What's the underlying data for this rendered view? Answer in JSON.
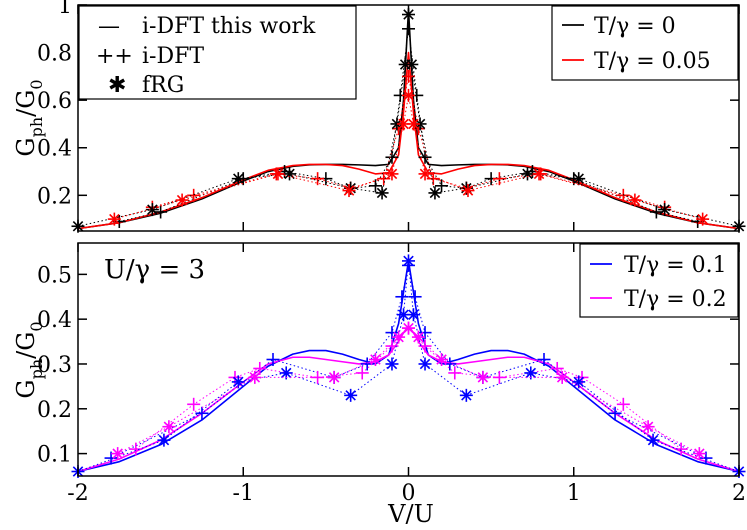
{
  "chart_data": [
    {
      "type": "line",
      "panel": "top",
      "xlim": [
        -2,
        2
      ],
      "ylim": [
        0.05,
        1.0
      ],
      "yticks": [
        0.2,
        0.4,
        0.6,
        0.8,
        1
      ],
      "ytick_labels": [
        "0.2",
        "0.4",
        "0.6",
        "0.8",
        "1"
      ],
      "ylabel": "Gph/G0",
      "ylabel_main": "G",
      "ylabel_sub": "ph",
      "ylabel_den": "G",
      "ylabel_den_sub": "0",
      "legend_left": {
        "placement": "top-left",
        "entries": [
          {
            "symbol": "—",
            "label": "i-DFT this work"
          },
          {
            "symbol": "++",
            "label": "i-DFT"
          },
          {
            "symbol": "✱",
            "label": "fRG"
          }
        ]
      },
      "legend_right": {
        "placement": "top-right",
        "entries": [
          {
            "label": "T/γ = 0",
            "color": "#000000"
          },
          {
            "label": "T/γ = 0.05",
            "color": "#ff0000"
          }
        ]
      },
      "series": [
        {
          "name": "T/γ = 0",
          "color": "#000000",
          "peak": 0.98,
          "x": [
            -2,
            -1.75,
            -1.5,
            -1.25,
            -1.0,
            -0.85,
            -0.7,
            -0.6,
            -0.5,
            -0.4,
            -0.3,
            -0.2,
            -0.12,
            -0.06,
            -0.03,
            0,
            0.03,
            0.06,
            0.12,
            0.2,
            0.3,
            0.4,
            0.5,
            0.6,
            0.7,
            0.85,
            1.0,
            1.25,
            1.5,
            1.75,
            2
          ],
          "y": [
            0.06,
            0.085,
            0.125,
            0.185,
            0.26,
            0.3,
            0.322,
            0.328,
            0.33,
            0.33,
            0.328,
            0.325,
            0.33,
            0.4,
            0.6,
            0.98,
            0.6,
            0.4,
            0.33,
            0.325,
            0.328,
            0.33,
            0.33,
            0.328,
            0.322,
            0.3,
            0.26,
            0.185,
            0.125,
            0.085,
            0.06
          ]
        },
        {
          "name": "T/γ = 0.05",
          "color": "#ff0000",
          "peak": 0.8,
          "x": [
            -2,
            -1.75,
            -1.5,
            -1.25,
            -1.0,
            -0.85,
            -0.7,
            -0.6,
            -0.5,
            -0.4,
            -0.3,
            -0.2,
            -0.12,
            -0.06,
            -0.03,
            0,
            0.03,
            0.06,
            0.12,
            0.2,
            0.3,
            0.4,
            0.5,
            0.6,
            0.7,
            0.85,
            1.0,
            1.25,
            1.5,
            1.75,
            2
          ],
          "y": [
            0.06,
            0.085,
            0.13,
            0.19,
            0.265,
            0.305,
            0.325,
            0.33,
            0.33,
            0.325,
            0.31,
            0.29,
            0.295,
            0.37,
            0.55,
            0.8,
            0.55,
            0.37,
            0.295,
            0.29,
            0.31,
            0.325,
            0.33,
            0.33,
            0.325,
            0.305,
            0.265,
            0.19,
            0.13,
            0.085,
            0.06
          ]
        },
        {
          "name": "i-DFT (T/γ = 0)",
          "color": "#000000",
          "marker": "plus",
          "x": [
            -1.75,
            -1.5,
            -1.0,
            -0.75,
            -0.5,
            -0.35,
            -0.2,
            -0.1,
            -0.05,
            0,
            0.05,
            0.1,
            0.2,
            0.35,
            0.5,
            0.75,
            1.0,
            1.5,
            1.75
          ],
          "y": [
            0.09,
            0.13,
            0.27,
            0.3,
            0.27,
            0.23,
            0.24,
            0.36,
            0.62,
            0.9,
            0.62,
            0.36,
            0.24,
            0.23,
            0.27,
            0.3,
            0.27,
            0.13,
            0.09
          ]
        },
        {
          "name": "i-DFT (T/γ = 0.05)",
          "color": "#ff0000",
          "marker": "plus",
          "x": [
            -1.55,
            -1.3,
            -0.8,
            -0.55,
            -0.35,
            -0.15,
            -0.06,
            0,
            0.06,
            0.15,
            0.35,
            0.55,
            0.8,
            1.3,
            1.55
          ],
          "y": [
            0.15,
            0.2,
            0.29,
            0.27,
            0.23,
            0.27,
            0.48,
            0.7,
            0.48,
            0.27,
            0.23,
            0.27,
            0.29,
            0.2,
            0.15
          ]
        },
        {
          "name": "fRG (T/γ = 0)",
          "color": "#000000",
          "marker": "star",
          "x": [
            -2,
            -1.55,
            -1.03,
            -0.72,
            -0.35,
            -0.16,
            -0.07,
            -0.02,
            0,
            0.02,
            0.07,
            0.16,
            0.35,
            0.72,
            1.03,
            1.55,
            2
          ],
          "y": [
            0.07,
            0.14,
            0.27,
            0.29,
            0.23,
            0.21,
            0.5,
            0.75,
            0.96,
            0.75,
            0.5,
            0.21,
            0.23,
            0.29,
            0.27,
            0.14,
            0.07
          ]
        },
        {
          "name": "fRG (T/γ = 0.05)",
          "color": "#ff0000",
          "marker": "star",
          "x": [
            -1.78,
            -1.37,
            -0.79,
            -0.36,
            -0.1,
            -0.03,
            0,
            0.03,
            0.1,
            0.36,
            0.79,
            1.37,
            1.78
          ],
          "y": [
            0.1,
            0.18,
            0.29,
            0.22,
            0.29,
            0.5,
            0.62,
            0.5,
            0.29,
            0.22,
            0.29,
            0.18,
            0.1
          ]
        }
      ]
    },
    {
      "type": "line",
      "panel": "bottom",
      "xlim": [
        -2,
        2
      ],
      "ylim": [
        0.05,
        0.57
      ],
      "xticks": [
        -2,
        -1,
        0,
        1,
        2
      ],
      "xtick_labels": [
        "-2",
        "-1",
        "0",
        "1",
        "2"
      ],
      "yticks": [
        0.1,
        0.2,
        0.3,
        0.4,
        0.5
      ],
      "ytick_labels": [
        "0.1",
        "0.2",
        "0.3",
        "0.4",
        "0.5"
      ],
      "xlabel": "V/U",
      "ylabel": "Gph/G0",
      "ylabel_main": "G",
      "ylabel_sub": "ph",
      "ylabel_den": "G",
      "ylabel_den_sub": "0",
      "annotation": "U/γ = 3",
      "legend_right": {
        "placement": "top-right",
        "entries": [
          {
            "label": "T/γ = 0.1",
            "color": "#0000ff"
          },
          {
            "label": "T/γ = 0.2",
            "color": "#ff00ff"
          }
        ]
      },
      "series": [
        {
          "name": "T/γ = 0.1",
          "color": "#0000ff",
          "x": [
            -2,
            -1.75,
            -1.5,
            -1.25,
            -1.0,
            -0.85,
            -0.7,
            -0.6,
            -0.5,
            -0.4,
            -0.3,
            -0.2,
            -0.12,
            -0.06,
            -0.03,
            0,
            0.03,
            0.06,
            0.12,
            0.2,
            0.3,
            0.4,
            0.5,
            0.6,
            0.7,
            0.85,
            1.0,
            1.25,
            1.5,
            1.75,
            2
          ],
          "y": [
            0.06,
            0.082,
            0.12,
            0.175,
            0.25,
            0.295,
            0.322,
            0.33,
            0.33,
            0.322,
            0.31,
            0.3,
            0.32,
            0.39,
            0.46,
            0.53,
            0.46,
            0.39,
            0.32,
            0.3,
            0.31,
            0.322,
            0.33,
            0.33,
            0.322,
            0.295,
            0.25,
            0.175,
            0.12,
            0.082,
            0.06
          ]
        },
        {
          "name": "T/γ = 0.2",
          "color": "#ff00ff",
          "x": [
            -2,
            -1.75,
            -1.5,
            -1.25,
            -1.0,
            -0.85,
            -0.7,
            -0.6,
            -0.5,
            -0.4,
            -0.3,
            -0.2,
            -0.12,
            -0.06,
            -0.03,
            0,
            0.03,
            0.06,
            0.12,
            0.2,
            0.3,
            0.4,
            0.5,
            0.6,
            0.7,
            0.85,
            1.0,
            1.25,
            1.5,
            1.75,
            2
          ],
          "y": [
            0.06,
            0.088,
            0.13,
            0.19,
            0.26,
            0.3,
            0.315,
            0.315,
            0.31,
            0.305,
            0.3,
            0.305,
            0.32,
            0.35,
            0.37,
            0.385,
            0.37,
            0.35,
            0.32,
            0.305,
            0.3,
            0.305,
            0.31,
            0.315,
            0.315,
            0.3,
            0.26,
            0.19,
            0.13,
            0.088,
            0.06
          ]
        },
        {
          "name": "i-DFT (T/γ = 0.1)",
          "color": "#0000ff",
          "marker": "plus",
          "x": [
            -1.8,
            -1.25,
            -0.82,
            -0.45,
            -0.25,
            -0.1,
            -0.04,
            0,
            0.04,
            0.1,
            0.25,
            0.45,
            0.82,
            1.25,
            1.8
          ],
          "y": [
            0.09,
            0.19,
            0.31,
            0.27,
            0.3,
            0.37,
            0.45,
            0.52,
            0.45,
            0.37,
            0.3,
            0.27,
            0.31,
            0.19,
            0.09
          ]
        },
        {
          "name": "i-DFT (T/γ = 0.2)",
          "color": "#ff00ff",
          "marker": "plus",
          "x": [
            -1.65,
            -1.3,
            -1.05,
            -0.9,
            -0.55,
            -0.28,
            -0.1,
            0,
            0.1,
            0.28,
            0.55,
            0.9,
            1.05,
            1.3,
            1.65
          ],
          "y": [
            0.11,
            0.21,
            0.27,
            0.29,
            0.27,
            0.28,
            0.34,
            0.38,
            0.34,
            0.28,
            0.27,
            0.29,
            0.27,
            0.21,
            0.11
          ]
        },
        {
          "name": "fRG (T/γ = 0.1)",
          "color": "#0000ff",
          "marker": "star",
          "x": [
            -2,
            -1.48,
            -1.03,
            -0.74,
            -0.35,
            -0.1,
            -0.03,
            0,
            0.03,
            0.1,
            0.35,
            0.74,
            1.03,
            1.48,
            2
          ],
          "y": [
            0.06,
            0.13,
            0.26,
            0.28,
            0.23,
            0.3,
            0.41,
            0.53,
            0.41,
            0.3,
            0.23,
            0.28,
            0.26,
            0.13,
            0.06
          ]
        },
        {
          "name": "fRG (T/γ = 0.2)",
          "color": "#ff00ff",
          "marker": "star",
          "x": [
            -1.76,
            -1.45,
            -0.93,
            -0.45,
            -0.2,
            -0.06,
            0,
            0.06,
            0.2,
            0.45,
            0.93,
            1.45,
            1.76
          ],
          "y": [
            0.1,
            0.16,
            0.27,
            0.27,
            0.31,
            0.36,
            0.38,
            0.36,
            0.31,
            0.27,
            0.27,
            0.16,
            0.1
          ]
        }
      ]
    }
  ]
}
